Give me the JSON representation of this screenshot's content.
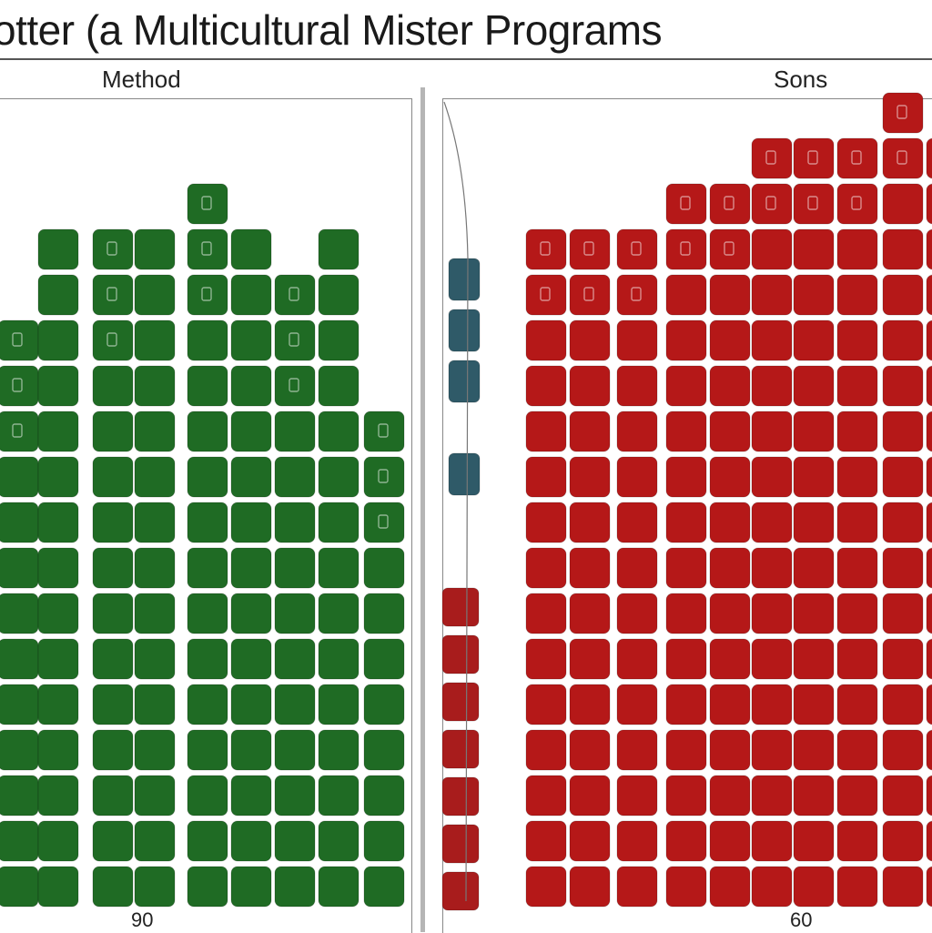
{
  "title": "otter (a Multicultural Mister Programs",
  "chart_data": {
    "type": "heatmap",
    "panels": [
      {
        "label": "Method",
        "tick_label": "90",
        "color": "#1f6b24",
        "column_counts": [
          13,
          15,
          15,
          15,
          16,
          15,
          14,
          15,
          11,
          11
        ],
        "icon_rows": 3
      },
      {
        "label": "Sons",
        "tick_label": "60",
        "color": "#b51818",
        "column_counts": [
          15,
          15,
          15,
          16,
          16,
          17,
          17,
          17,
          18,
          17
        ],
        "side_markers": {
          "teal_count": 4,
          "red_count": 7,
          "teal_color": "#2f5a68",
          "red_color": "#a81c1c"
        }
      }
    ],
    "grid": true,
    "legend": "none"
  }
}
